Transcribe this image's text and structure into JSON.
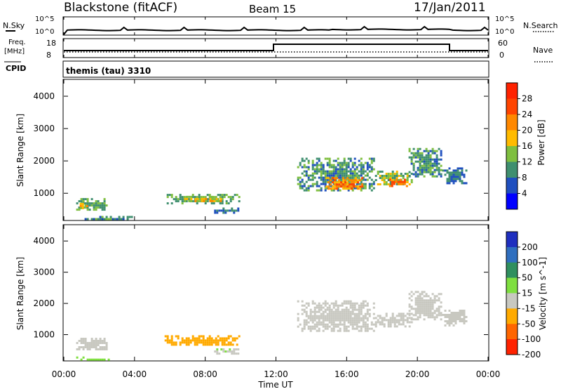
{
  "header": {
    "station": "Blackstone (fitACF)",
    "beam": "Beam 15",
    "date": "17/Jan/2011"
  },
  "noise_panel": {
    "left_label": "N.Sky",
    "left_ticks": [
      "10^5",
      "10^0"
    ],
    "right_ticks": [
      "10^5",
      "10^0"
    ],
    "right_label": "N.Search"
  },
  "freq_panel": {
    "left_label_line1": "Freq.",
    "left_label_line2": "[MHz]",
    "left_ticks": [
      "18",
      "8"
    ],
    "right_ticks": [
      "60",
      "0"
    ],
    "right_label": "Nave"
  },
  "cpid_panel": {
    "label": "CPID",
    "value": "themis (tau) 3310"
  },
  "x_axis": {
    "label": "Time UT",
    "ticks": [
      "00:00",
      "04:00",
      "08:00",
      "12:00",
      "16:00",
      "20:00",
      "00:00"
    ]
  },
  "power_colorbar": {
    "label": "Power [dB]",
    "ticks": [
      "28",
      "24",
      "20",
      "16",
      "12",
      "8",
      "4"
    ],
    "colors": [
      "#ff2200",
      "#ff4400",
      "#ff8800",
      "#ffbb00",
      "#7fbf3f",
      "#3f8f6f",
      "#1f4fbf",
      "#0000ff"
    ]
  },
  "velocity_colorbar": {
    "label": "Velocity [m s^-1]",
    "ticks": [
      "200",
      "100",
      "50",
      "15",
      "-15",
      "-50",
      "-100",
      "-200"
    ],
    "colors": [
      "#1f2fbf",
      "#2f6fbf",
      "#2f8f5f",
      "#7fdf3f",
      "#c8c8c0",
      "#ffaa00",
      "#ff6600",
      "#ff2200"
    ]
  },
  "chart_data": [
    {
      "type": "heatmap",
      "title": "Power",
      "xlabel": "Time UT",
      "ylabel": "Slant Range [km]",
      "x_range_hours": [
        0,
        24
      ],
      "ylim": [
        180,
        4500
      ],
      "yticks": [
        1000,
        2000,
        3000,
        4000
      ],
      "colorbar": "Power [dB]",
      "echo_regions": [
        {
          "t_start": 0.7,
          "t_end": 2.4,
          "r_min": 500,
          "r_max": 850,
          "level_db": 12
        },
        {
          "t_start": 0.9,
          "t_end": 1.6,
          "r_min": 560,
          "r_max": 700,
          "level_db": 18
        },
        {
          "t_start": 0.7,
          "t_end": 3.8,
          "r_min": 180,
          "r_max": 300,
          "level_db": 10
        },
        {
          "t_start": 5.7,
          "t_end": 9.9,
          "r_min": 700,
          "r_max": 980,
          "level_db": 12
        },
        {
          "t_start": 6.8,
          "t_end": 9.0,
          "r_min": 750,
          "r_max": 920,
          "level_db": 18
        },
        {
          "t_start": 8.5,
          "t_end": 9.9,
          "r_min": 420,
          "r_max": 560,
          "level_db": 8
        },
        {
          "t_start": 13.2,
          "t_end": 17.6,
          "r_min": 1100,
          "r_max": 2100,
          "level_db": 10
        },
        {
          "t_start": 14.8,
          "t_end": 16.9,
          "r_min": 1150,
          "r_max": 1500,
          "level_db": 22
        },
        {
          "t_start": 17.6,
          "t_end": 19.7,
          "r_min": 1250,
          "r_max": 1700,
          "level_db": 14
        },
        {
          "t_start": 18.4,
          "t_end": 19.4,
          "r_min": 1250,
          "r_max": 1450,
          "level_db": 24
        },
        {
          "t_start": 19.5,
          "t_end": 21.4,
          "r_min": 1500,
          "r_max": 2400,
          "level_db": 10
        },
        {
          "t_start": 21.4,
          "t_end": 22.8,
          "r_min": 1300,
          "r_max": 1800,
          "level_db": 8
        }
      ]
    },
    {
      "type": "heatmap",
      "title": "Velocity",
      "xlabel": "Time UT",
      "ylabel": "Slant Range [km]",
      "x_range_hours": [
        0,
        24
      ],
      "ylim": [
        180,
        4500
      ],
      "yticks": [
        1000,
        2000,
        3000,
        4000
      ],
      "colorbar": "Velocity [m s^-1]",
      "echo_regions": [
        {
          "t_start": 0.7,
          "t_end": 2.4,
          "r_min": 500,
          "r_max": 900,
          "velocity": 0
        },
        {
          "t_start": 0.7,
          "t_end": 2.6,
          "r_min": 180,
          "r_max": 300,
          "velocity": 30
        },
        {
          "t_start": 5.7,
          "t_end": 9.9,
          "r_min": 650,
          "r_max": 980,
          "velocity": -40
        },
        {
          "t_start": 8.5,
          "t_end": 9.9,
          "r_min": 420,
          "r_max": 560,
          "velocity": 10
        },
        {
          "t_start": 13.2,
          "t_end": 17.6,
          "r_min": 1100,
          "r_max": 2100,
          "velocity": 0
        },
        {
          "t_start": 17.6,
          "t_end": 19.7,
          "r_min": 1250,
          "r_max": 1700,
          "velocity": 0
        },
        {
          "t_start": 19.5,
          "t_end": 21.4,
          "r_min": 1500,
          "r_max": 2400,
          "velocity": 0
        },
        {
          "t_start": 21.4,
          "t_end": 22.8,
          "r_min": 1300,
          "r_max": 1800,
          "velocity": 0
        }
      ]
    }
  ]
}
